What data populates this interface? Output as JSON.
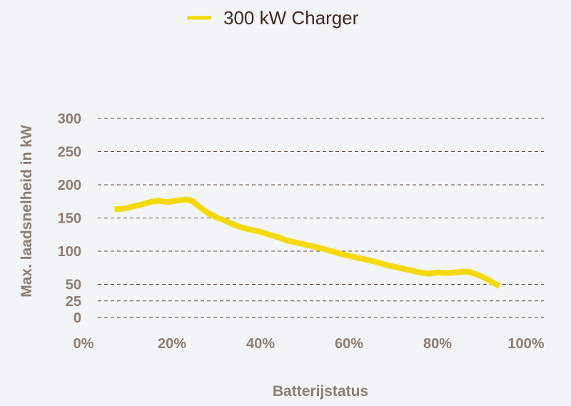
{
  "colors": {
    "background": "#f3f4f6",
    "series": "#f5d90a",
    "axis_text": "#8b7d72",
    "legend_text": "#3d2b22",
    "grid": "#5a4a40"
  },
  "chart_data": {
    "type": "line",
    "title": "",
    "xlabel": "Batterijstatus",
    "ylabel": "Max. laadsnelheid in kW",
    "xlim": [
      0,
      100
    ],
    "ylim": [
      0,
      300
    ],
    "x_ticks": [
      0,
      20,
      40,
      60,
      80,
      100
    ],
    "x_tick_labels": [
      "0%",
      "20%",
      "40%",
      "60%",
      "80%",
      "100%"
    ],
    "y_ticks": [
      0,
      25,
      50,
      100,
      150,
      200,
      250,
      300
    ],
    "y_tick_labels": [
      "0",
      "25",
      "50",
      "100",
      "150",
      "200",
      "250",
      "300"
    ],
    "grid": "horizontal dashed",
    "legend_position": "top-center",
    "series": [
      {
        "name": "300 kW Charger",
        "x": [
          7,
          9,
          11,
          13,
          15,
          17,
          19,
          21,
          23,
          24.5,
          26,
          28,
          30,
          32,
          34,
          36,
          38,
          40,
          42,
          44,
          46,
          48,
          50,
          52,
          54,
          56,
          58,
          60,
          62,
          64,
          66,
          68,
          70,
          72,
          74,
          76,
          78,
          80,
          82,
          84,
          86,
          87,
          88,
          90,
          92,
          94
        ],
        "y": [
          163,
          164,
          167,
          170,
          174,
          176,
          174,
          176,
          178,
          176,
          168,
          158,
          151,
          146,
          140,
          135,
          132,
          129,
          125,
          121,
          116,
          113,
          110,
          107,
          104,
          100,
          96,
          93,
          90,
          87,
          84,
          80,
          77,
          74,
          71,
          68,
          66,
          68,
          67,
          68,
          69,
          69,
          67,
          62,
          55,
          47
        ]
      }
    ]
  }
}
